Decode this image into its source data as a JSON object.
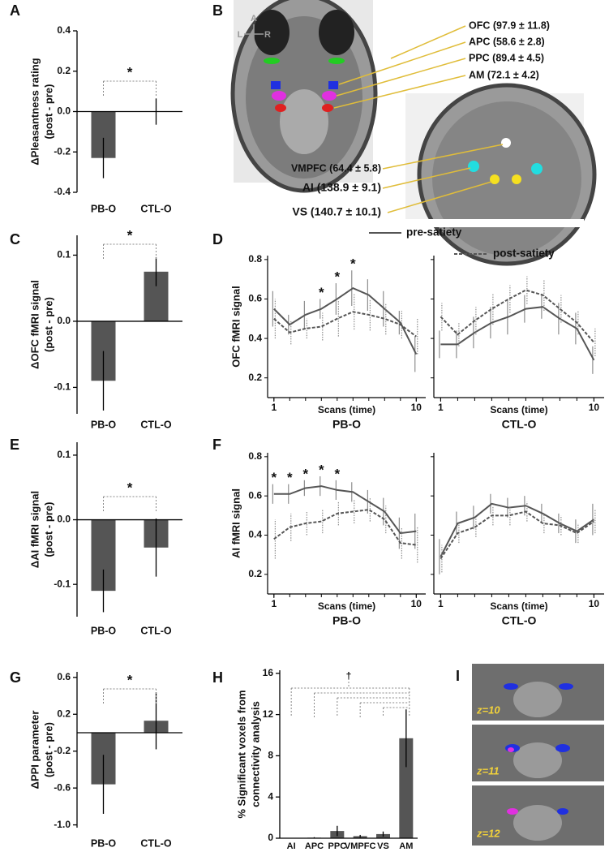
{
  "chart_data": [
    {
      "type": "bar",
      "panel": "A",
      "ylabel": [
        "ΔPleasantness rating",
        "(post - pre)"
      ],
      "categories": [
        "PB-O",
        "CTL-O"
      ],
      "values": [
        -0.23,
        0.0
      ],
      "errors": [
        0.1,
        0.065
      ],
      "color": "#555555",
      "ylim": [
        -0.4,
        0.4
      ],
      "yticks": [
        0.4,
        0.2,
        {
          "value": 0,
          "label": "0.0"
        },
        -0.2,
        -0.4
      ],
      "annotation": "*"
    },
    {
      "type": "bar",
      "panel": "C",
      "ylabel": [
        "ΔOFC fMRI signal",
        "(post - pre)"
      ],
      "categories": [
        "PB-O",
        "CTL-O"
      ],
      "values": [
        -0.09,
        0.075
      ],
      "errors": [
        0.045,
        0.022
      ],
      "color": "#555555",
      "ylim": [
        -0.14,
        0.13
      ],
      "yticks": [
        0.1,
        {
          "value": 0,
          "label": "0.0"
        },
        -0.1
      ],
      "annotation": "*"
    },
    {
      "type": "line",
      "panel": "D",
      "ylabel": "OFC fMRI signal",
      "xlabel": "Scans (time)",
      "legend": [
        "pre-satiety",
        "post-satiety"
      ],
      "series_styles": [
        {
          "color": "#555555",
          "line": "solid"
        },
        {
          "color": "#555555",
          "line": "dashed"
        }
      ],
      "x": [
        1,
        2,
        3,
        4,
        5,
        6,
        7,
        8,
        9,
        10
      ],
      "xlim": [
        0.6,
        10.6
      ],
      "xticks": [
        1,
        10
      ],
      "ylim": [
        0.1,
        0.82
      ],
      "yticks": [
        0.8,
        0.6,
        0.4,
        0.2
      ],
      "subplots": [
        {
          "title": "PB-O",
          "series": [
            {
              "values": [
                0.55,
                0.47,
                0.52,
                0.55,
                0.6,
                0.655,
                0.62,
                0.55,
                0.48,
                0.32
              ],
              "errors": [
                0.09,
                0.05,
                0.07,
                0.05,
                0.08,
                0.09,
                0.08,
                0.09,
                0.06,
                0.09
              ]
            },
            {
              "values": [
                0.5,
                0.43,
                0.45,
                0.46,
                0.5,
                0.535,
                0.52,
                0.5,
                0.47,
                0.41
              ],
              "errors": [
                0.1,
                0.06,
                0.05,
                0.07,
                0.09,
                0.09,
                0.08,
                0.08,
                0.07,
                0.09
              ]
            }
          ],
          "stars": {
            "text": "*",
            "x": [
              4,
              5,
              6
            ]
          }
        },
        {
          "title": "CTL-O",
          "series": [
            {
              "values": [
                0.37,
                0.37,
                0.43,
                0.48,
                0.51,
                0.55,
                0.56,
                0.5,
                0.45,
                0.29
              ],
              "errors": [
                0.07,
                0.07,
                0.08,
                0.08,
                0.09,
                0.07,
                0.06,
                0.08,
                0.08,
                0.07
              ]
            },
            {
              "values": [
                0.51,
                0.42,
                0.49,
                0.55,
                0.6,
                0.645,
                0.62,
                0.55,
                0.48,
                0.38
              ],
              "errors": [
                0.07,
                0.06,
                0.07,
                0.08,
                0.07,
                0.07,
                0.08,
                0.07,
                0.06,
                0.07
              ]
            }
          ]
        }
      ]
    },
    {
      "type": "bar",
      "panel": "E",
      "ylabel": [
        "ΔAI fMRI signal",
        "(post - pre)"
      ],
      "categories": [
        "PB-O",
        "CTL-O"
      ],
      "values": [
        -0.11,
        -0.043
      ],
      "errors": [
        0.033,
        0.045
      ],
      "color": "#555555",
      "ylim": [
        -0.15,
        0.12
      ],
      "yticks": [
        0.1,
        {
          "value": 0,
          "label": "0.0"
        },
        -0.1
      ],
      "annotation": "*"
    },
    {
      "type": "line",
      "panel": "F",
      "ylabel": "AI fMRI signal",
      "xlabel": "Scans (time)",
      "series_styles": [
        {
          "color": "#555555",
          "line": "solid"
        },
        {
          "color": "#555555",
          "line": "dashed"
        }
      ],
      "x": [
        1,
        2,
        3,
        4,
        5,
        6,
        7,
        8,
        9,
        10
      ],
      "xlim": [
        0.6,
        10.6
      ],
      "xticks": [
        1,
        10
      ],
      "ylim": [
        0.1,
        0.82
      ],
      "yticks": [
        0.8,
        0.6,
        0.4,
        0.2
      ],
      "subplots": [
        {
          "title": "PB-O",
          "series": [
            {
              "values": [
                0.61,
                0.61,
                0.64,
                0.65,
                0.63,
                0.62,
                0.57,
                0.52,
                0.41,
                0.42
              ],
              "errors": [
                0.05,
                0.05,
                0.04,
                0.05,
                0.05,
                0.05,
                0.06,
                0.07,
                0.08,
                0.09
              ]
            },
            {
              "values": [
                0.38,
                0.44,
                0.46,
                0.47,
                0.51,
                0.52,
                0.53,
                0.48,
                0.36,
                0.35
              ],
              "errors": [
                0.1,
                0.07,
                0.06,
                0.06,
                0.06,
                0.06,
                0.06,
                0.07,
                0.08,
                0.09
              ]
            }
          ],
          "stars": {
            "text": "*",
            "x": [
              1,
              2,
              3,
              4,
              5
            ]
          }
        },
        {
          "title": "CTL-O",
          "series": [
            {
              "values": [
                0.29,
                0.46,
                0.49,
                0.56,
                0.54,
                0.55,
                0.51,
                0.46,
                0.42,
                0.48
              ],
              "errors": [
                0.09,
                0.06,
                0.06,
                0.05,
                0.05,
                0.05,
                0.05,
                0.05,
                0.06,
                0.08
              ]
            },
            {
              "values": [
                0.28,
                0.41,
                0.44,
                0.5,
                0.5,
                0.52,
                0.46,
                0.45,
                0.41,
                0.47
              ],
              "errors": [
                0.07,
                0.05,
                0.05,
                0.05,
                0.05,
                0.05,
                0.05,
                0.05,
                0.05,
                0.06
              ]
            }
          ]
        }
      ]
    },
    {
      "type": "bar",
      "panel": "G",
      "ylabel": [
        "ΔPPI parameter",
        "(post - pre)"
      ],
      "categories": [
        "PB-O",
        "CTL-O"
      ],
      "values": [
        -0.56,
        0.13
      ],
      "errors": [
        0.32,
        0.31
      ],
      "color": "#555555",
      "ylim": [
        -1.03,
        0.66
      ],
      "yticks": [
        0.6,
        0.2,
        -0.2,
        -0.6,
        {
          "value": -1,
          "label": "-1.0"
        }
      ],
      "annotation": "*"
    },
    {
      "type": "bar",
      "panel": "H",
      "ylabel": [
        "% Significant voxels from",
        "connectivity analysis"
      ],
      "categories": [
        "AI",
        "APC",
        "PPC",
        "VMPFC",
        "VS",
        "AM"
      ],
      "values": [
        0,
        0.05,
        0.7,
        0.2,
        0.4,
        9.7
      ],
      "errors": [
        0,
        0.05,
        0.5,
        0.12,
        0.25,
        2.8
      ],
      "color": "#555555",
      "ylim": [
        0,
        16.3
      ],
      "yticks": [
        0,
        4,
        8,
        12,
        16
      ],
      "annotation": "†"
    }
  ],
  "panel_b": {
    "panel": "B",
    "compass": [
      "A",
      "P",
      "L",
      "R"
    ],
    "labels": [
      "OFC (97.9 ± 11.8)",
      "APC (58.6 ± 2.8)",
      "PPC (89.4 ± 4.5)",
      "AM (72.1 ± 4.2)",
      "VMPFC (64.4 ± 5.8)",
      "AI (138.9 ± 9.1)",
      "VS (140.7 ± 10.1)"
    ]
  },
  "panel_i": {
    "panel": "I",
    "labels": [
      "z=10",
      "z=11",
      "z=12"
    ]
  }
}
